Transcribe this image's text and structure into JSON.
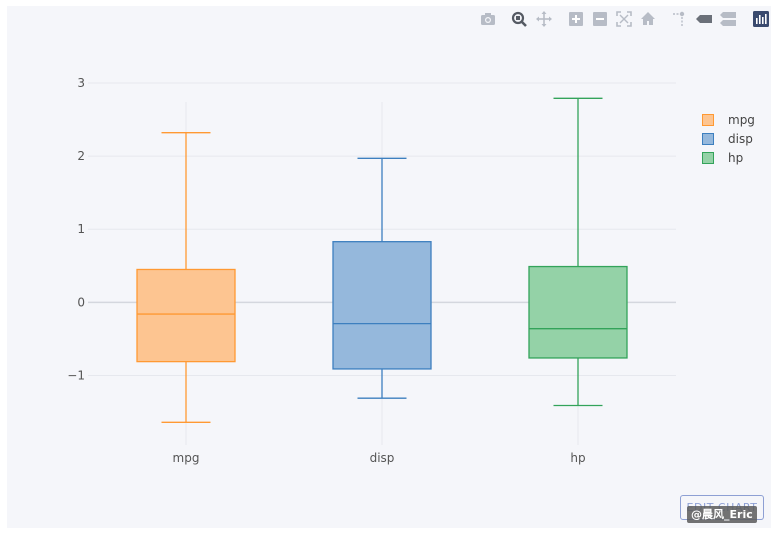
{
  "toolbar": {
    "icons": [
      "camera-icon",
      "zoom-icon",
      "pan-icon",
      "zoom-in-icon",
      "zoom-out-icon",
      "autoscale-icon",
      "home-icon",
      "spike-lines-icon",
      "hover-closest-icon",
      "hover-compare-icon",
      "plotly-logo-icon"
    ]
  },
  "edit_chart_label": "EDIT CHART",
  "watermark": "@晨风_Eric",
  "chart_data": {
    "type": "box",
    "title": "",
    "xlabel": "",
    "ylabel": "",
    "categories": [
      "mpg",
      "disp",
      "hp"
    ],
    "yticks": [
      -1,
      0,
      1,
      2,
      3
    ],
    "ytick_labels": [
      "−1",
      "0",
      "1",
      "2",
      "3"
    ],
    "ylim": [
      -1.95,
      3.15
    ],
    "grid": true,
    "legend_position": "top-right",
    "series": [
      {
        "name": "mpg",
        "color": "#ff9933",
        "fill": "#fdc591",
        "whisker_low": -1.64,
        "q1": -0.81,
        "median": -0.16,
        "q3": 0.45,
        "whisker_high": 2.32
      },
      {
        "name": "disp",
        "color": "#3d7fbf",
        "fill": "#95b8dc",
        "whisker_low": -1.31,
        "q1": -0.91,
        "median": -0.29,
        "q3": 0.83,
        "whisker_high": 1.97
      },
      {
        "name": "hp",
        "color": "#33a35a",
        "fill": "#94d2a7",
        "whisker_low": -1.41,
        "q1": -0.76,
        "median": -0.36,
        "q3": 0.49,
        "whisker_high": 2.79
      }
    ]
  }
}
